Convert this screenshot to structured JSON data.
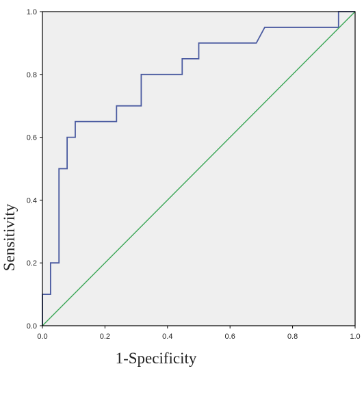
{
  "colors": {
    "plot_background": "#efefef",
    "frame": "#000000",
    "roc_curve": "#4a5aa0",
    "reference_line": "#3aa655",
    "page_background": "#ffffff"
  },
  "chart_data": {
    "type": "line",
    "title": "",
    "xlabel": "1-Specificity",
    "ylabel": "Sensitivity",
    "xlim": [
      0.0,
      1.0
    ],
    "ylim": [
      0.0,
      1.0
    ],
    "x_ticks": [
      0.0,
      0.2,
      0.4,
      0.6,
      0.8,
      1.0
    ],
    "y_ticks": [
      0.0,
      0.2,
      0.4,
      0.6,
      0.8,
      1.0
    ],
    "x_tick_labels": [
      "0.0",
      "0.2",
      "0.4",
      "0.6",
      "0.8",
      "1.0"
    ],
    "y_tick_labels": [
      "0.0",
      "0.2",
      "0.4",
      "0.6",
      "0.8",
      "1.0"
    ],
    "grid": false,
    "legend": "none",
    "series": [
      {
        "key": "roc-curve",
        "color": "#4a5aa0",
        "step": true,
        "x": [
          0.0,
          0.0,
          0.026,
          0.026,
          0.053,
          0.053,
          0.079,
          0.079,
          0.105,
          0.105,
          0.237,
          0.237,
          0.316,
          0.316,
          0.447,
          0.447,
          0.5,
          0.5,
          0.684,
          0.711,
          0.947,
          0.947,
          1.0
        ],
        "y": [
          0.0,
          0.1,
          0.1,
          0.2,
          0.2,
          0.5,
          0.5,
          0.6,
          0.6,
          0.65,
          0.65,
          0.7,
          0.7,
          0.8,
          0.8,
          0.85,
          0.85,
          0.9,
          0.9,
          0.95,
          0.95,
          1.0,
          1.0
        ]
      },
      {
        "key": "reference-line",
        "color": "#3aa655",
        "step": false,
        "x": [
          0.0,
          1.0
        ],
        "y": [
          0.0,
          1.0
        ]
      }
    ]
  }
}
